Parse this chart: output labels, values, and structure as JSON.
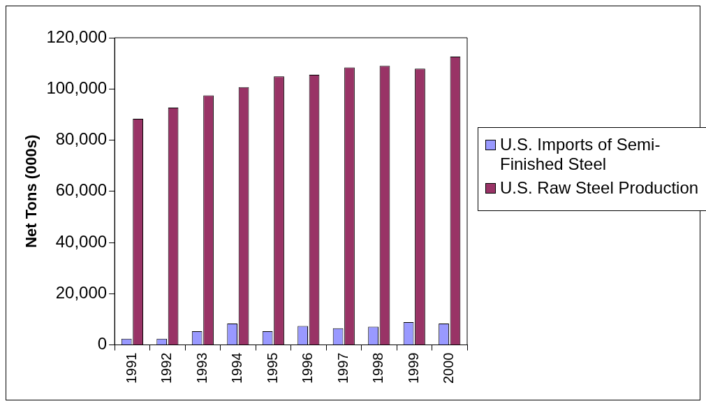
{
  "chart_data": {
    "type": "bar",
    "ylabel": "Net Tons (000s)",
    "categories": [
      "1991",
      "1992",
      "1993",
      "1994",
      "1995",
      "1996",
      "1997",
      "1998",
      "1999",
      "2000"
    ],
    "series": [
      {
        "name": "U.S. Imports of Semi-Finished Steel",
        "color": "#9999ff",
        "values": [
          2400,
          2400,
          5300,
          8300,
          5300,
          7400,
          6500,
          7100,
          8900,
          8300
        ]
      },
      {
        "name": "U.S. Raw Steel Production",
        "color": "#993366",
        "values": [
          88300,
          92700,
          97500,
          100700,
          104900,
          105500,
          108400,
          109000,
          107900,
          112600
        ]
      }
    ],
    "ylim": [
      0,
      120000
    ],
    "yticks": [
      {
        "value": 0,
        "label": "0"
      },
      {
        "value": 20000,
        "label": "20,000"
      },
      {
        "value": 40000,
        "label": "40,000"
      },
      {
        "value": 60000,
        "label": "60,000"
      },
      {
        "value": 80000,
        "label": "80,000"
      },
      {
        "value": 100000,
        "label": "100,000"
      },
      {
        "value": 120000,
        "label": "120,000"
      }
    ],
    "grid": false,
    "legend": "right"
  }
}
